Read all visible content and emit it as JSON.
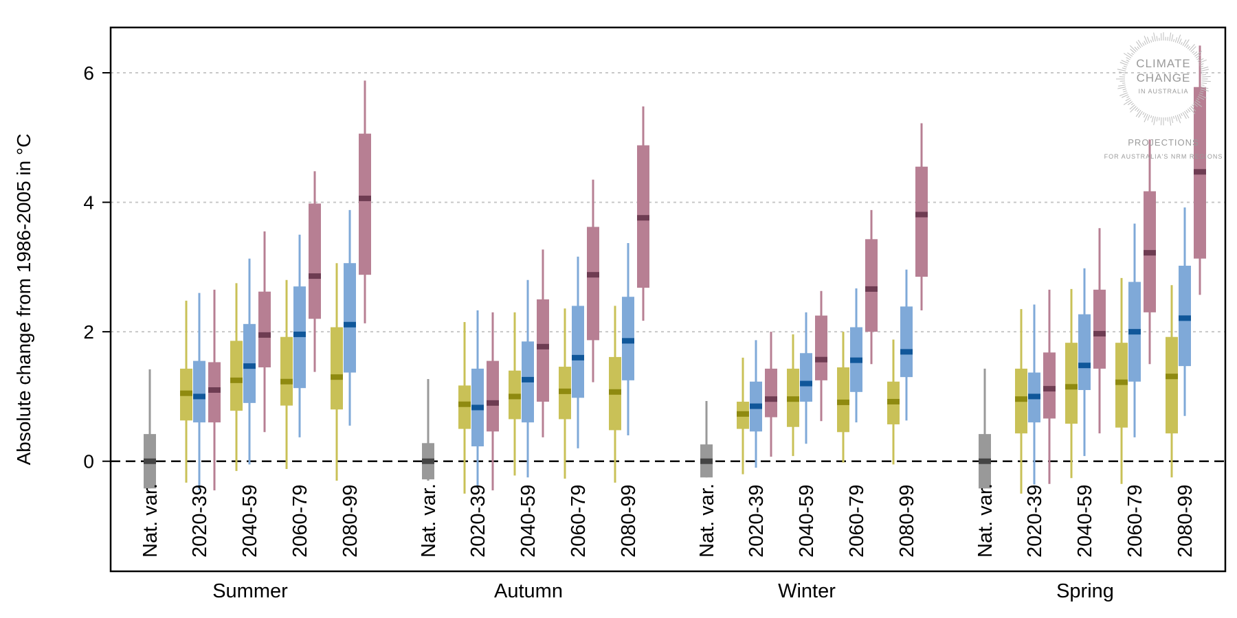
{
  "chart_data": {
    "type": "box",
    "ylabel": "Absolute change from 1986-2005 in  °C",
    "ylim": [
      -1.7,
      6.7
    ],
    "yticks": [
      0,
      2,
      4,
      6
    ],
    "ytick_labels": [
      "0",
      "2",
      "4",
      "6"
    ],
    "grid": "horizontal-dotted",
    "zero_line": "dashed",
    "period_labels": [
      "Nat. var.",
      "2020-39",
      "2040-59",
      "2060-79",
      "2080-99"
    ],
    "colors": {
      "natvar": {
        "bar": "#999999",
        "median": "#444444",
        "whisker": "#999999"
      },
      "low": {
        "bar": "#c9c157",
        "median": "#8f8a10",
        "whisker": "#c9c157"
      },
      "mid": {
        "bar": "#7fa9d8",
        "median": "#10579a",
        "whisker": "#7fa9d8"
      },
      "high": {
        "bar": "#b77f93",
        "median": "#6e3c52",
        "whisker": "#b77f93"
      }
    },
    "seasons": [
      {
        "name": "Summer",
        "natvar": {
          "lo": -0.42,
          "q1": -0.42,
          "med": 0.0,
          "q3": 0.42,
          "hi": 1.42
        },
        "periods": [
          {
            "label": "2020-39",
            "low": {
              "lo": -0.33,
              "q1": 0.63,
              "med": 1.05,
              "q3": 1.43,
              "hi": 2.48
            },
            "mid": {
              "lo": -0.45,
              "q1": 0.6,
              "med": 1.0,
              "q3": 1.55,
              "hi": 2.6
            },
            "high": {
              "lo": -0.45,
              "q1": 0.6,
              "med": 1.1,
              "q3": 1.53,
              "hi": 2.65
            }
          },
          {
            "label": "2040-59",
            "low": {
              "lo": -0.15,
              "q1": 0.78,
              "med": 1.25,
              "q3": 1.86,
              "hi": 2.75
            },
            "mid": {
              "lo": -0.05,
              "q1": 0.9,
              "med": 1.47,
              "q3": 2.12,
              "hi": 3.13
            },
            "high": {
              "lo": 0.45,
              "q1": 1.45,
              "med": 1.95,
              "q3": 2.62,
              "hi": 3.55
            }
          },
          {
            "label": "2060-79",
            "low": {
              "lo": -0.12,
              "q1": 0.86,
              "med": 1.23,
              "q3": 1.92,
              "hi": 2.8
            },
            "mid": {
              "lo": 0.37,
              "q1": 1.13,
              "med": 1.96,
              "q3": 2.7,
              "hi": 3.5
            },
            "high": {
              "lo": 1.38,
              "q1": 2.2,
              "med": 2.86,
              "q3": 3.98,
              "hi": 4.48
            }
          },
          {
            "label": "2080-99",
            "low": {
              "lo": -0.3,
              "q1": 0.8,
              "med": 1.3,
              "q3": 2.07,
              "hi": 3.06
            },
            "mid": {
              "lo": 0.55,
              "q1": 1.37,
              "med": 2.11,
              "q3": 3.06,
              "hi": 3.88
            },
            "high": {
              "lo": 2.13,
              "q1": 2.88,
              "med": 4.06,
              "q3": 5.06,
              "hi": 5.88
            }
          }
        ]
      },
      {
        "name": "Autumn",
        "natvar": {
          "lo": -0.3,
          "q1": -0.28,
          "med": 0.0,
          "q3": 0.28,
          "hi": 1.27
        },
        "periods": [
          {
            "label": "2020-39",
            "low": {
              "lo": -0.5,
              "q1": 0.5,
              "med": 0.88,
              "q3": 1.17,
              "hi": 2.15
            },
            "mid": {
              "lo": -0.38,
              "q1": 0.23,
              "med": 0.83,
              "q3": 1.43,
              "hi": 2.33
            },
            "high": {
              "lo": -0.45,
              "q1": 0.46,
              "med": 0.9,
              "q3": 1.55,
              "hi": 2.3
            }
          },
          {
            "label": "2040-59",
            "low": {
              "lo": -0.22,
              "q1": 0.65,
              "med": 1.0,
              "q3": 1.4,
              "hi": 2.3
            },
            "mid": {
              "lo": -0.25,
              "q1": 0.6,
              "med": 1.26,
              "q3": 1.85,
              "hi": 2.8
            },
            "high": {
              "lo": 0.37,
              "q1": 0.92,
              "med": 1.77,
              "q3": 2.5,
              "hi": 3.27
            }
          },
          {
            "label": "2060-79",
            "low": {
              "lo": -0.27,
              "q1": 0.65,
              "med": 1.08,
              "q3": 1.46,
              "hi": 2.36
            },
            "mid": {
              "lo": 0.2,
              "q1": 0.98,
              "med": 1.6,
              "q3": 2.4,
              "hi": 3.16
            },
            "high": {
              "lo": 1.22,
              "q1": 1.87,
              "med": 2.88,
              "q3": 3.62,
              "hi": 4.35
            }
          },
          {
            "label": "2080-99",
            "low": {
              "lo": -0.33,
              "q1": 0.48,
              "med": 1.07,
              "q3": 1.61,
              "hi": 2.4
            },
            "mid": {
              "lo": 0.4,
              "q1": 1.25,
              "med": 1.86,
              "q3": 2.54,
              "hi": 3.37
            },
            "high": {
              "lo": 2.17,
              "q1": 2.68,
              "med": 3.76,
              "q3": 4.88,
              "hi": 5.48
            }
          }
        ]
      },
      {
        "name": "Winter",
        "natvar": {
          "lo": -0.25,
          "q1": -0.25,
          "med": 0.0,
          "q3": 0.26,
          "hi": 0.93
        },
        "periods": [
          {
            "label": "2020-39",
            "low": {
              "lo": -0.2,
              "q1": 0.5,
              "med": 0.73,
              "q3": 0.92,
              "hi": 1.6
            },
            "mid": {
              "lo": -0.1,
              "q1": 0.46,
              "med": 0.85,
              "q3": 1.23,
              "hi": 1.87
            },
            "high": {
              "lo": 0.07,
              "q1": 0.68,
              "med": 0.96,
              "q3": 1.43,
              "hi": 2.0
            }
          },
          {
            "label": "2040-59",
            "low": {
              "lo": 0.08,
              "q1": 0.53,
              "med": 0.96,
              "q3": 1.43,
              "hi": 1.96
            },
            "mid": {
              "lo": 0.27,
              "q1": 0.92,
              "med": 1.2,
              "q3": 1.67,
              "hi": 2.3
            },
            "high": {
              "lo": 0.62,
              "q1": 1.25,
              "med": 1.57,
              "q3": 2.25,
              "hi": 2.63
            }
          },
          {
            "label": "2060-79",
            "low": {
              "lo": -0.02,
              "q1": 0.45,
              "med": 0.91,
              "q3": 1.45,
              "hi": 2.0
            },
            "mid": {
              "lo": 0.6,
              "q1": 1.07,
              "med": 1.56,
              "q3": 2.07,
              "hi": 2.67
            },
            "high": {
              "lo": 1.5,
              "q1": 2.0,
              "med": 2.66,
              "q3": 3.43,
              "hi": 3.88
            }
          },
          {
            "label": "2080-99",
            "low": {
              "lo": -0.05,
              "q1": 0.57,
              "med": 0.92,
              "q3": 1.23,
              "hi": 1.88
            },
            "mid": {
              "lo": 0.63,
              "q1": 1.3,
              "med": 1.69,
              "q3": 2.39,
              "hi": 2.96
            },
            "high": {
              "lo": 2.33,
              "q1": 2.85,
              "med": 3.81,
              "q3": 4.55,
              "hi": 5.22
            }
          }
        ]
      },
      {
        "name": "Spring",
        "natvar": {
          "lo": -0.42,
          "q1": -0.42,
          "med": 0.0,
          "q3": 0.42,
          "hi": 1.43
        },
        "periods": [
          {
            "label": "2020-39",
            "low": {
              "lo": -0.5,
              "q1": 0.43,
              "med": 0.96,
              "q3": 1.43,
              "hi": 2.35
            },
            "mid": {
              "lo": -0.36,
              "q1": 0.6,
              "med": 1.0,
              "q3": 1.37,
              "hi": 2.42
            },
            "high": {
              "lo": -0.35,
              "q1": 0.66,
              "med": 1.12,
              "q3": 1.68,
              "hi": 2.65
            }
          },
          {
            "label": "2040-59",
            "low": {
              "lo": -0.26,
              "q1": 0.58,
              "med": 1.15,
              "q3": 1.83,
              "hi": 2.66
            },
            "mid": {
              "lo": 0.08,
              "q1": 1.1,
              "med": 1.48,
              "q3": 2.27,
              "hi": 2.98
            },
            "high": {
              "lo": 0.43,
              "q1": 1.43,
              "med": 1.97,
              "q3": 2.65,
              "hi": 3.6
            }
          },
          {
            "label": "2060-79",
            "low": {
              "lo": -0.35,
              "q1": 0.52,
              "med": 1.22,
              "q3": 1.83,
              "hi": 2.83
            },
            "mid": {
              "lo": 0.37,
              "q1": 1.23,
              "med": 2.0,
              "q3": 2.77,
              "hi": 3.67
            },
            "high": {
              "lo": 1.5,
              "q1": 2.3,
              "med": 3.22,
              "q3": 4.17,
              "hi": 4.97
            }
          },
          {
            "label": "2080-99",
            "low": {
              "lo": -0.25,
              "q1": 0.43,
              "med": 1.31,
              "q3": 1.92,
              "hi": 2.72
            },
            "mid": {
              "lo": 0.7,
              "q1": 1.47,
              "med": 2.21,
              "q3": 3.02,
              "hi": 3.92
            },
            "high": {
              "lo": 2.57,
              "q1": 3.13,
              "med": 4.47,
              "q3": 5.78,
              "hi": 6.42
            }
          }
        ]
      }
    ]
  },
  "watermark": {
    "line1": "CLIMATE",
    "line2": "CHANGE",
    "line3": "IN AUSTRALIA",
    "line4": "PROJECTIONS",
    "line5": "FOR AUSTRALIA'S NRM REGIONS"
  }
}
